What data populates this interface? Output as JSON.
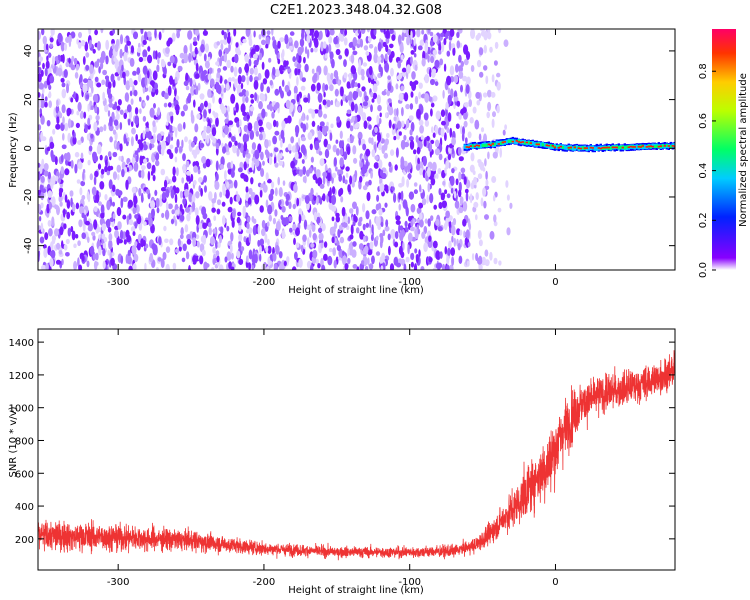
{
  "title": "C2E1.2023.348.04.32.G08",
  "chart_data": [
    {
      "type": "heatmap",
      "xlabel": "Height of straight line (km)",
      "ylabel": "Frequency (Hz)",
      "xlim": [
        -355,
        82
      ],
      "ylim": [
        -50,
        49
      ],
      "xticks": [
        -300,
        -200,
        -100,
        0
      ],
      "yticks": [
        -40,
        -20,
        0,
        20,
        40
      ],
      "noise_region": {
        "x_start": -355,
        "x_dense_end": -60,
        "x_sparse_end": -27,
        "y_range": [
          -50,
          49
        ]
      },
      "signal_trace": {
        "x_start": -63,
        "x_end": 82,
        "center_freq": [
          [
            -63,
            0.5
          ],
          [
            -45,
            1.5
          ],
          [
            -30,
            3.0
          ],
          [
            -10,
            1.5
          ],
          [
            0,
            0.5
          ],
          [
            20,
            0.0
          ],
          [
            50,
            0.5
          ],
          [
            82,
            1.0
          ]
        ],
        "peak_normalized_amplitude": 0.95
      },
      "colorbar": {
        "label": "Normalized spectral amplitude",
        "range": [
          0.0,
          0.97
        ],
        "ticks": [
          0.0,
          0.2,
          0.4,
          0.6,
          0.8
        ],
        "tick_labels": [
          "0.0",
          "0.2",
          "0.4",
          "0.6",
          "0.8"
        ]
      },
      "grid": false
    },
    {
      "type": "line",
      "xlabel": "Height of straight line (km)",
      "ylabel": "SNR (10 * v/v)",
      "xlim": [
        -355,
        82
      ],
      "ylim": [
        10,
        1480
      ],
      "xticks": [
        -300,
        -200,
        -100,
        0
      ],
      "yticks": [
        200,
        400,
        600,
        800,
        1000,
        1200,
        1400
      ],
      "series": [
        {
          "color": "#ee3333",
          "mean_profile": [
            [
              -355,
              220
            ],
            [
              -300,
              210
            ],
            [
              -250,
              190
            ],
            [
              -200,
              140
            ],
            [
              -150,
              120
            ],
            [
              -100,
              118
            ],
            [
              -70,
              125
            ],
            [
              -55,
              160
            ],
            [
              -45,
              230
            ],
            [
              -35,
              330
            ],
            [
              -25,
              420
            ],
            [
              -15,
              550
            ],
            [
              -5,
              650
            ],
            [
              5,
              850
            ],
            [
              15,
              1000
            ],
            [
              30,
              1080
            ],
            [
              50,
              1120
            ],
            [
              65,
              1160
            ],
            [
              82,
              1230
            ]
          ],
          "spread_profile": [
            [
              -355,
              200
            ],
            [
              -300,
              170
            ],
            [
              -250,
              130
            ],
            [
              -200,
              80
            ],
            [
              -150,
              70
            ],
            [
              -100,
              70
            ],
            [
              -60,
              80
            ],
            [
              -40,
              160
            ],
            [
              -20,
              320
            ],
            [
              0,
              420
            ],
            [
              20,
              260
            ],
            [
              50,
              220
            ],
            [
              82,
              220
            ]
          ]
        }
      ],
      "grid": false
    }
  ]
}
